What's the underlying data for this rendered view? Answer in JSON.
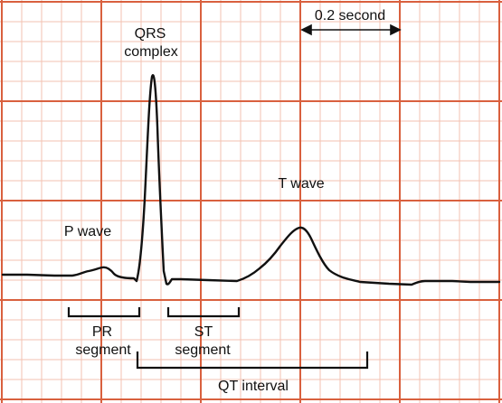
{
  "labels": {
    "qrs_line1": "QRS",
    "qrs_line2": "complex",
    "p_wave": "P wave",
    "t_wave": "T wave",
    "scale": "0.2 second",
    "pr_line1": "PR",
    "pr_line2": "segment",
    "st_line1": "ST",
    "st_line2": "segment",
    "qt": "QT interval"
  },
  "colors": {
    "grid_major": "#d9603e",
    "grid_minor": "#f3c2b2",
    "trace": "#111111",
    "background": "#ffffff"
  }
}
